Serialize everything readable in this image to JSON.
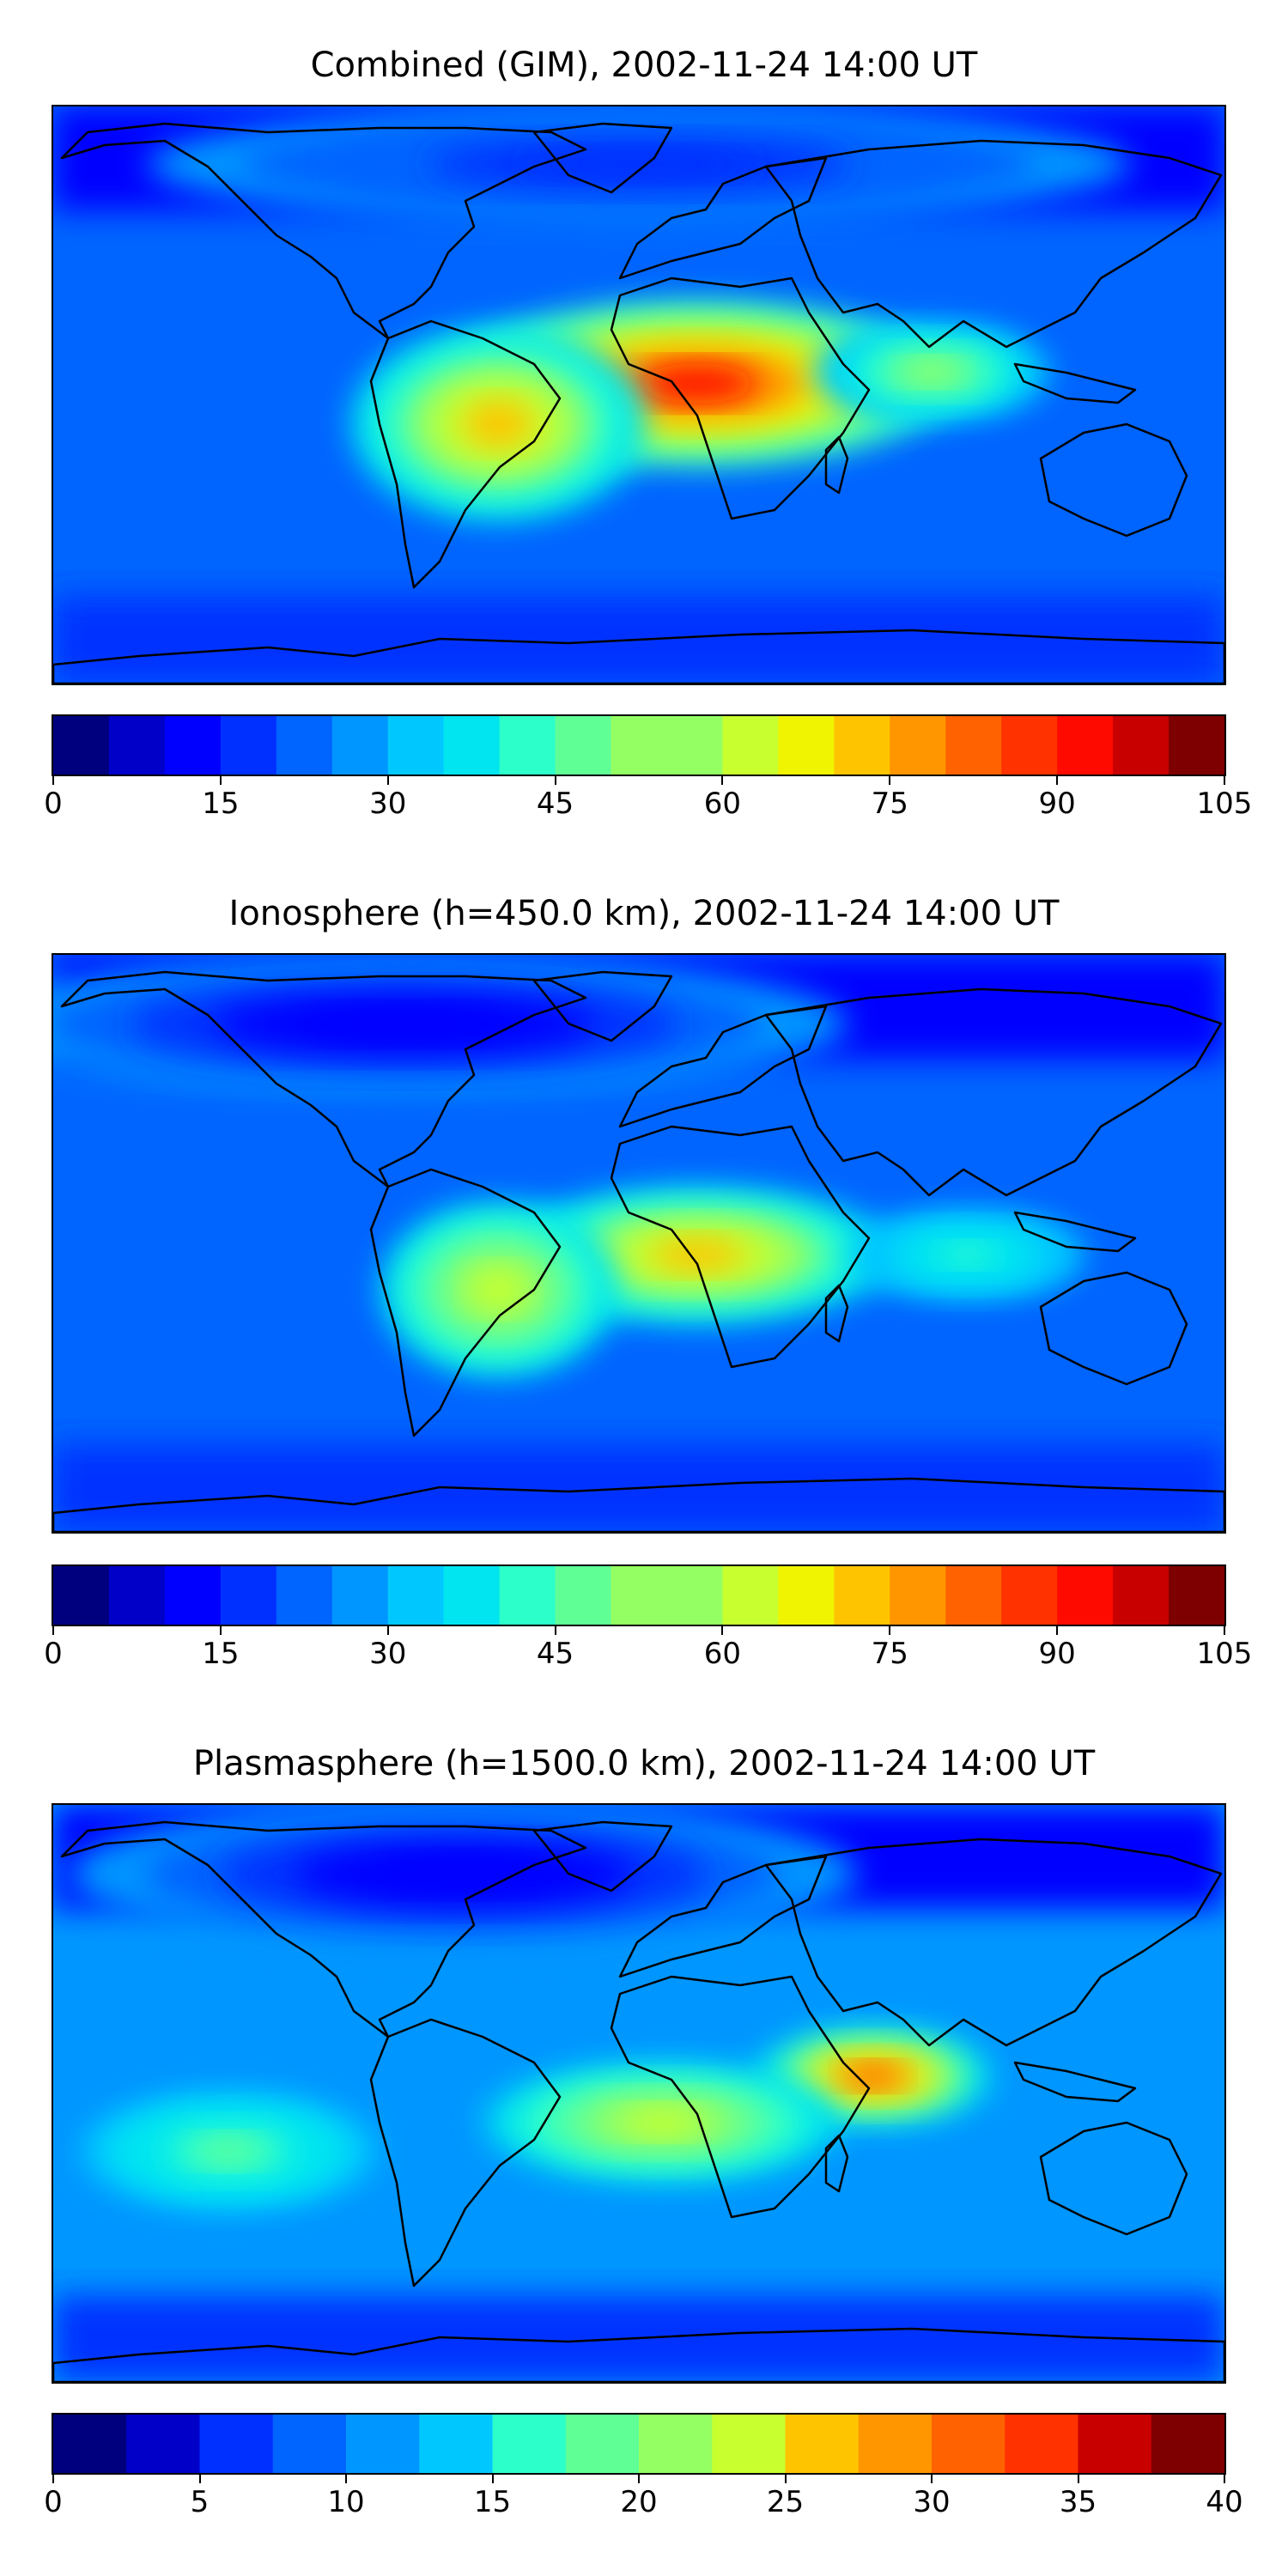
{
  "chart_data": [
    {
      "type": "heatmap",
      "title": "Combined (GIM), 2002-11-24 14:00 UT",
      "colorbar": {
        "min": 0,
        "max": 105,
        "step": 5,
        "tick_labels": [
          "0",
          "15",
          "30",
          "45",
          "60",
          "75",
          "90",
          "105"
        ]
      },
      "features": [
        {
          "region": "tropical Atlantic / central Africa",
          "level": 0.85
        },
        {
          "region": "Amazon / South America",
          "level": 0.65
        },
        {
          "region": "Arabia / Indian Ocean",
          "level": 0.5
        },
        {
          "region": "high latitudes",
          "level": 0.15
        }
      ]
    },
    {
      "type": "heatmap",
      "title": "Ionosphere  (h=450.0 km), 2002-11-24 14:00 UT",
      "colorbar": {
        "min": 0,
        "max": 105,
        "step": 5,
        "tick_labels": [
          "0",
          "15",
          "30",
          "45",
          "60",
          "75",
          "90",
          "105"
        ]
      },
      "features": [
        {
          "region": "equatorial Atlantic / Africa",
          "level": 0.65
        },
        {
          "region": "South America",
          "level": 0.55
        },
        {
          "region": "Indian Ocean",
          "level": 0.4
        },
        {
          "region": "high latitudes",
          "level": 0.1
        }
      ]
    },
    {
      "type": "heatmap",
      "title": "Plasmasphere (h=1500.0 km), 2002-11-24 14:00 UT",
      "colorbar": {
        "min": 0,
        "max": 40,
        "step": 2.5,
        "tick_labels": [
          "0",
          "5",
          "10",
          "15",
          "20",
          "25",
          "30",
          "35",
          "40"
        ]
      },
      "features": [
        {
          "region": "India / Arabian Sea",
          "level": 0.75
        },
        {
          "region": "Africa / Atlantic",
          "level": 0.55
        },
        {
          "region": "South Pacific",
          "level": 0.45
        },
        {
          "region": "northern high latitudes",
          "level": 0.1
        }
      ]
    }
  ],
  "colors": {
    "jet": [
      "#00007f",
      "#0000c8",
      "#0000ff",
      "#0030ff",
      "#0064ff",
      "#0096ff",
      "#00c8ff",
      "#00e5f0",
      "#2dffca",
      "#60ff96",
      "#94ff62",
      "#c8ff2f",
      "#f0f400",
      "#ffc400",
      "#ff9600",
      "#ff6200",
      "#ff3200",
      "#ff0a00",
      "#c80000",
      "#7f0000"
    ],
    "coastline": "#000000"
  }
}
